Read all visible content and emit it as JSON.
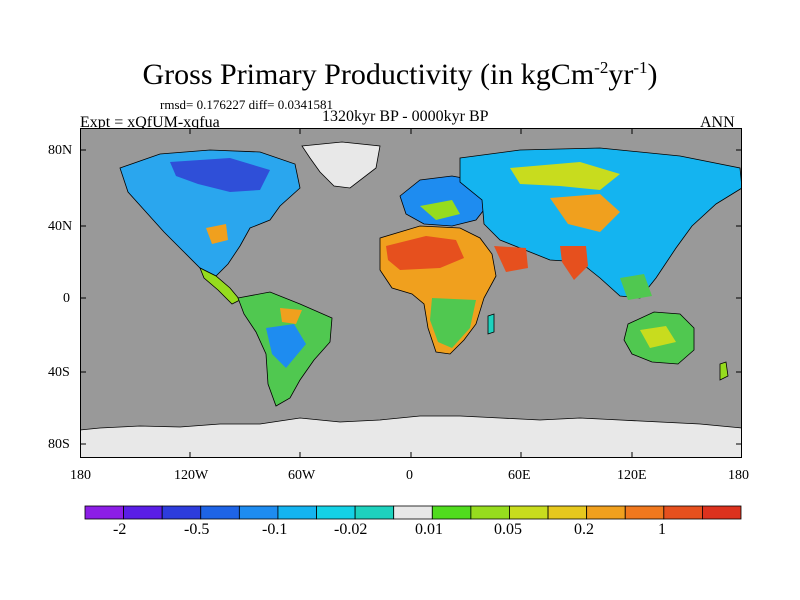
{
  "map": {
    "title_main": "Gross Primary Productivity (in kgCm",
    "title_sup1": "-2",
    "title_mid": "yr",
    "title_sup2": "-1",
    "title_end": ")",
    "stats": "rmsd= 0.176227 diff= 0.0341581",
    "experiment": "Expt = xQfUM-xqfua",
    "period": "1320kyr BP - 0000kyr BP",
    "season": "ANN",
    "lat_labels": [
      "80N",
      "40N",
      "0",
      "40S",
      "80S"
    ],
    "lon_labels": [
      "180",
      "120W",
      "60W",
      "0",
      "60E",
      "120E",
      "180"
    ],
    "ocean_color": "#999999",
    "ice_color": "#e8e8e8"
  },
  "colorbar": {
    "colors": [
      "#8c1ee6",
      "#5a1ee6",
      "#2d3cdc",
      "#1e64e6",
      "#1e8cf0",
      "#14b4f0",
      "#14d2e6",
      "#1ed2be",
      "#e8e8e8",
      "#50dc1e",
      "#96dc1e",
      "#c8dc1e",
      "#e6c81e",
      "#f0a01e",
      "#f0781e",
      "#e6501e",
      "#dc321e"
    ],
    "labels": [
      "-2",
      "-0.5",
      "-0.1",
      "-0.02",
      "0.01",
      "0.05",
      "0.2",
      "1"
    ]
  }
}
